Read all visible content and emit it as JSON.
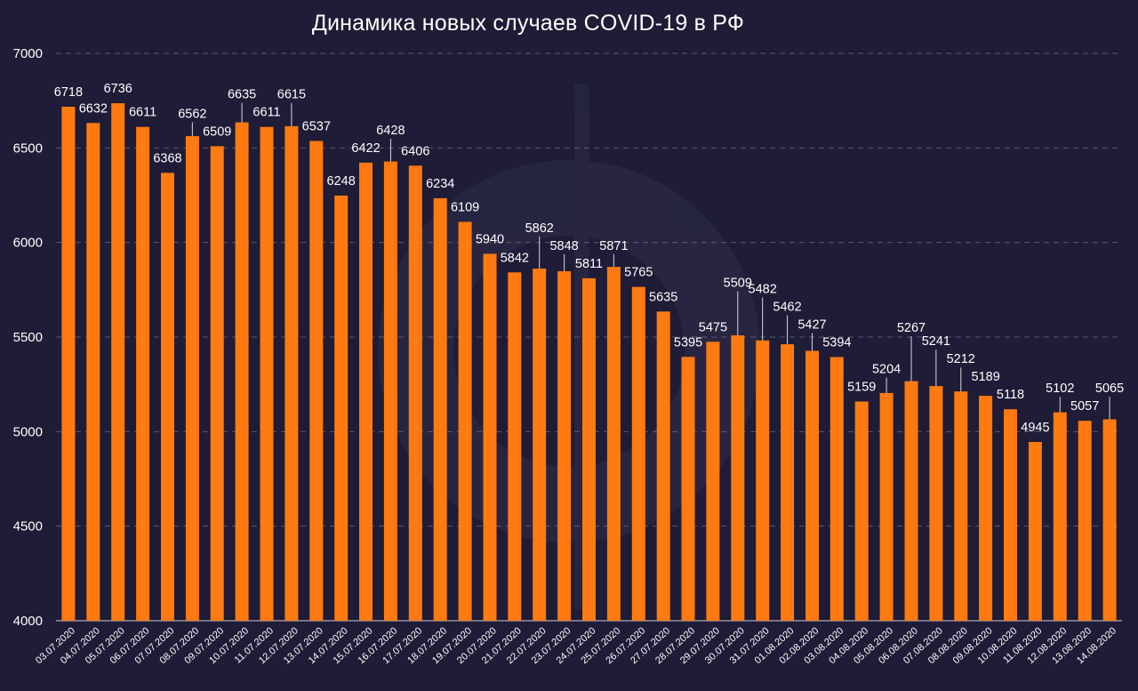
{
  "chart_data": {
    "type": "bar",
    "title": "Динамика новых случаев COVID-19 в РФ",
    "categories": [
      "03.07.2020",
      "04.07.2020",
      "05.07.2020",
      "06.07.2020",
      "07.07.2020",
      "08.07.2020",
      "09.07.2020",
      "10.07.2020",
      "11.07.2020",
      "12.07.2020",
      "13.07.2020",
      "14.07.2020",
      "15.07.2020",
      "16.07.2020",
      "17.07.2020",
      "18.07.2020",
      "19.07.2020",
      "20.07.2020",
      "21.07.2020",
      "22.07.2020",
      "23.07.2020",
      "24.07.2020",
      "25.07.2020",
      "26.07.2020",
      "27.07.2020",
      "28.07.2020",
      "29.07.2020",
      "30.07.2020",
      "31.07.2020",
      "01.08.2020",
      "02.08.2020",
      "03.08.2020",
      "04.08.2020",
      "05.08.2020",
      "06.08.2020",
      "07.08.2020",
      "08.08.2020",
      "09.08.2020",
      "10.08.2020",
      "11.08.2020",
      "12.08.2020",
      "13.08.2020",
      "14.08.2020"
    ],
    "values": [
      6718,
      6632,
      6736,
      6611,
      6368,
      6562,
      6509,
      6635,
      6611,
      6615,
      6537,
      6248,
      6422,
      6428,
      6406,
      6234,
      6109,
      5940,
      5842,
      5862,
      5848,
      5811,
      5871,
      5765,
      5635,
      5395,
      5475,
      5509,
      5482,
      5462,
      5427,
      5394,
      5159,
      5204,
      5267,
      5241,
      5212,
      5189,
      5118,
      4945,
      5102,
      5057,
      5065
    ],
    "ylim": [
      4000,
      7000
    ],
    "yticks": [
      4000,
      4500,
      5000,
      5500,
      6000,
      6500,
      7000
    ],
    "xlabel": "",
    "ylabel": "",
    "grid": true,
    "legend": "none",
    "bar_color": "#ff7a10",
    "background_color": "#1e1c36"
  }
}
